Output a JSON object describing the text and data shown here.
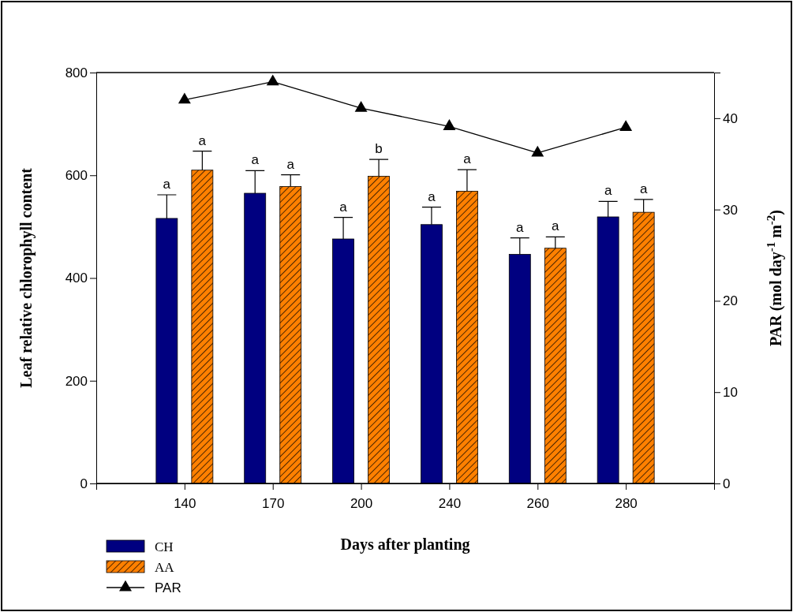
{
  "chart_data": {
    "type": "bar",
    "categories": [
      "140",
      "170",
      "200",
      "240",
      "260",
      "280"
    ],
    "xlabel": "Days after planting",
    "ylabel": "Leaf  relative chlorophyll  content",
    "y2label": "PAR (mol day$^{-1}$ m$^{-2}$)",
    "ylim": [
      0,
      800
    ],
    "yticks": [
      0,
      200,
      400,
      600,
      800
    ],
    "y2lim": [
      0,
      45
    ],
    "y2ticks": [
      0,
      10,
      20,
      30,
      40
    ],
    "series": [
      {
        "name": "CH",
        "color": "#000080",
        "values": [
          516,
          565,
          476,
          504,
          446,
          519
        ],
        "errors": [
          [
            516,
            562
          ],
          [
            565,
            609
          ],
          [
            476,
            518
          ],
          [
            504,
            538
          ],
          [
            446,
            478
          ],
          [
            519,
            549
          ]
        ]
      },
      {
        "name": "AA",
        "color": "#ff8000",
        "values": [
          610,
          578,
          598,
          569,
          458,
          528
        ],
        "errors": [
          [
            610,
            647
          ],
          [
            578,
            601
          ],
          [
            598,
            631
          ],
          [
            569,
            611
          ],
          [
            458,
            480
          ],
          [
            528,
            553
          ]
        ]
      },
      {
        "name": "PAR",
        "type": "line",
        "axis": "y2",
        "color": "#000000",
        "marker": "triangle",
        "line_style": "solid",
        "values": [
          42,
          44,
          41.1,
          39.1,
          36.2,
          39
        ]
      }
    ],
    "annotations": [
      "a",
      "a",
      "a",
      "a",
      "a",
      "b",
      "a",
      "a",
      "a",
      "a",
      "a",
      "a"
    ],
    "grid": false,
    "legend": "bottom left"
  }
}
